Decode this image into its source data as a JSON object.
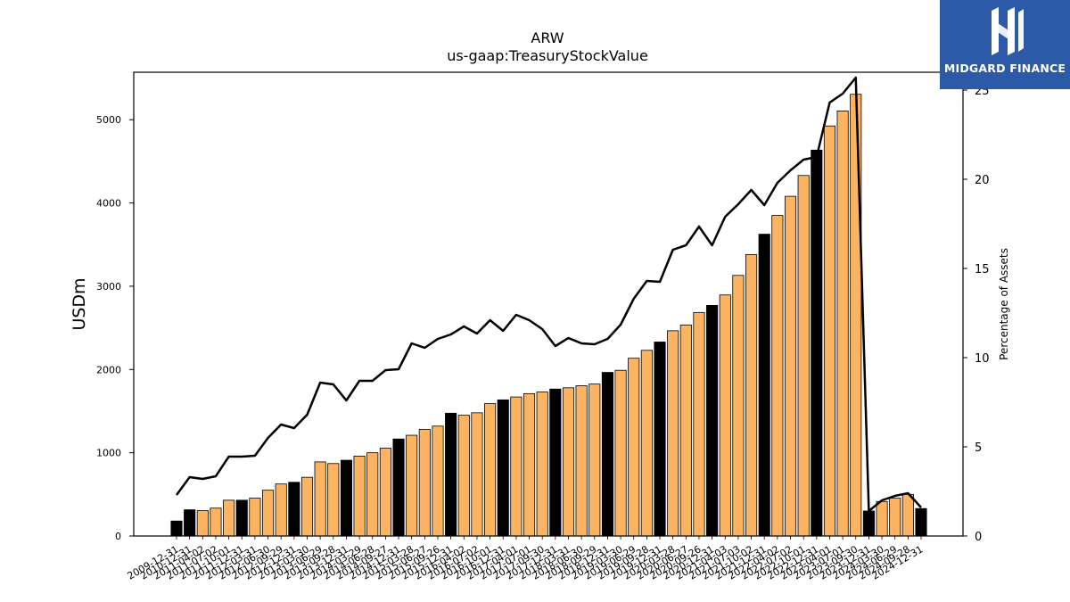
{
  "brand": {
    "name": "MIDGARD FINANCE",
    "logo_icon": "midgard-m-icon",
    "background": "#2d5aa8"
  },
  "chart_data": {
    "type": "bar",
    "title": "ARW",
    "subtitle": "us-gaap:TreasuryStockValue",
    "ylabel": "USDm",
    "y2label": "Percentage of Assets",
    "ylim": [
      0,
      5570
    ],
    "y2lim": [
      0,
      26.0
    ],
    "yticks": [
      0,
      1000,
      2000,
      3000,
      4000,
      5000
    ],
    "y2ticks": [
      0,
      5,
      10,
      15,
      20,
      25
    ],
    "grid": false,
    "colors": {
      "annual": "#000000",
      "quarterly": "#fdb462",
      "line": "#000000"
    },
    "categories": [
      "2009-12-31",
      "2010-12-31",
      "2011-04-02",
      "2011-07-02",
      "2011-10-01",
      "2011-12-31",
      "2012-03-31",
      "2012-06-30",
      "2012-09-29",
      "2012-12-31",
      "2013-03-30",
      "2013-06-29",
      "2013-09-28",
      "2013-12-31",
      "2014-03-29",
      "2014-06-28",
      "2014-09-27",
      "2014-12-31",
      "2015-03-28",
      "2015-06-27",
      "2015-09-26",
      "2015-12-31",
      "2016-04-02",
      "2016-07-02",
      "2016-10-01",
      "2016-12-31",
      "2017-04-01",
      "2017-07-01",
      "2017-09-30",
      "2017-12-31",
      "2018-03-31",
      "2018-06-30",
      "2018-09-29",
      "2018-12-31",
      "2019-03-30",
      "2019-06-29",
      "2019-09-28",
      "2019-12-31",
      "2020-03-28",
      "2020-06-27",
      "2020-09-26",
      "2020-12-31",
      "2021-04-03",
      "2021-07-03",
      "2021-10-02",
      "2021-12-31",
      "2022-04-02",
      "2022-07-02",
      "2022-10-01",
      "2022-12-31",
      "2023-04-01",
      "2023-07-01",
      "2023-09-30",
      "2023-12-31",
      "2024-03-30",
      "2024-06-29",
      "2024-09-28",
      "2024-12-31"
    ],
    "annual_flags": [
      1,
      1,
      0,
      0,
      0,
      1,
      0,
      0,
      0,
      1,
      0,
      0,
      0,
      1,
      0,
      0,
      0,
      1,
      0,
      0,
      0,
      1,
      0,
      0,
      0,
      1,
      0,
      0,
      0,
      1,
      0,
      0,
      0,
      1,
      0,
      0,
      0,
      1,
      0,
      0,
      0,
      1,
      0,
      0,
      0,
      1,
      0,
      0,
      0,
      1,
      0,
      0,
      0,
      1,
      0,
      0,
      0,
      1
    ],
    "series": [
      {
        "name": "TreasuryStockValue",
        "type": "bar",
        "axis": "left",
        "values": [
          180,
          315,
          305,
          335,
          430,
          430,
          455,
          550,
          625,
          645,
          705,
          890,
          870,
          910,
          960,
          1000,
          1055,
          1165,
          1210,
          1280,
          1320,
          1475,
          1450,
          1480,
          1590,
          1635,
          1670,
          1710,
          1730,
          1765,
          1780,
          1805,
          1825,
          1965,
          1990,
          2135,
          2230,
          2330,
          2465,
          2535,
          2685,
          2770,
          2895,
          3130,
          3380,
          3625,
          3850,
          4080,
          4330,
          4635,
          4925,
          5105,
          5305,
          300,
          415,
          455,
          500,
          330
        ]
      },
      {
        "name": "Percentage of Assets",
        "type": "line",
        "axis": "right",
        "values": [
          2.3,
          3.3,
          3.2,
          3.35,
          4.45,
          4.45,
          4.5,
          5.5,
          6.25,
          6.05,
          6.8,
          8.6,
          8.5,
          7.6,
          8.7,
          8.7,
          9.3,
          9.35,
          10.8,
          10.55,
          11.05,
          11.3,
          11.75,
          11.35,
          12.1,
          11.5,
          12.4,
          12.1,
          11.6,
          10.65,
          11.1,
          10.8,
          10.75,
          11.05,
          11.85,
          13.3,
          14.3,
          14.25,
          16.05,
          16.3,
          17.35,
          16.3,
          17.9,
          18.6,
          19.4,
          18.55,
          19.8,
          20.5,
          21.1,
          21.25,
          24.3,
          24.8,
          25.7,
          1.4,
          2.0,
          2.25,
          2.4,
          1.6
        ]
      }
    ]
  }
}
